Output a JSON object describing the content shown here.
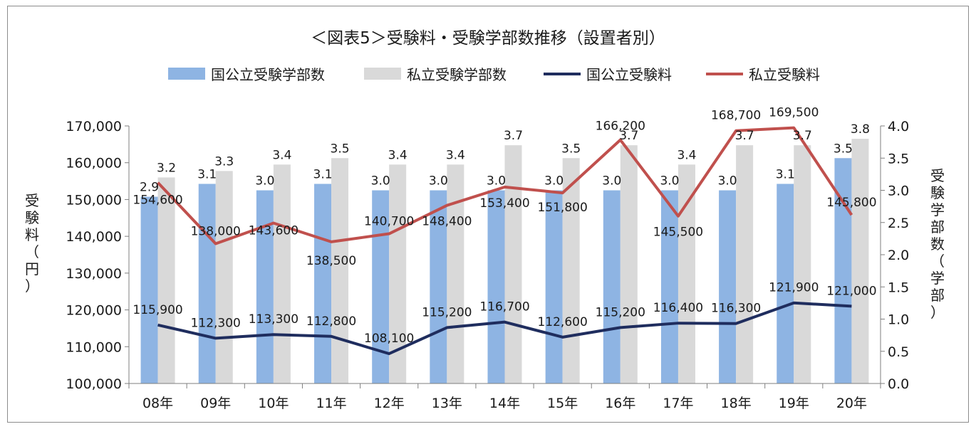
{
  "chart_data": {
    "type": "bar",
    "title": "＜図表5＞受験料・受験学部数推移（設置者別）",
    "categories": [
      "08年",
      "09年",
      "10年",
      "11年",
      "12年",
      "13年",
      "14年",
      "15年",
      "16年",
      "17年",
      "18年",
      "19年",
      "20年"
    ],
    "y_left": {
      "label": "受験料（円）",
      "range": [
        100000,
        170000
      ],
      "ticks": [
        "100,000",
        "110,000",
        "120,000",
        "130,000",
        "140,000",
        "150,000",
        "160,000",
        "170,000"
      ]
    },
    "y_right": {
      "label": "受験学部数（学部）",
      "range": [
        0,
        4
      ],
      "ticks": [
        "0.0",
        "0.5",
        "1.0",
        "1.5",
        "2.0",
        "2.5",
        "3.0",
        "3.5",
        "4.0"
      ]
    },
    "legend_position": "top",
    "grid": false,
    "series": [
      {
        "name": "国公立受験学部数",
        "kind": "bar",
        "axis": "right",
        "color": "#8eb4e3",
        "values": [
          2.9,
          3.1,
          3.0,
          3.1,
          3.0,
          3.0,
          3.0,
          3.0,
          3.0,
          3.0,
          3.0,
          3.1,
          3.5
        ],
        "labels": [
          "2.9",
          "3.1",
          "3.0",
          "3.1",
          "3.0",
          "3.0",
          "3.0",
          "3.0",
          "3.0",
          "3.0",
          "3.0",
          "3.1",
          "3.5"
        ]
      },
      {
        "name": "私立受験学部数",
        "kind": "bar",
        "axis": "right",
        "color": "#d9d9d9",
        "values": [
          3.2,
          3.3,
          3.4,
          3.5,
          3.4,
          3.4,
          3.7,
          3.5,
          3.7,
          3.4,
          3.7,
          3.7,
          3.8
        ],
        "labels": [
          "3.2",
          "3.3",
          "3.4",
          "3.5",
          "3.4",
          "3.4",
          "3.7",
          "3.5",
          "3.7",
          "3.4",
          "3.7",
          "3.7",
          "3.8"
        ]
      },
      {
        "name": "国公立受験料",
        "kind": "line",
        "axis": "left",
        "color": "#1f2d5e",
        "values": [
          115900,
          112300,
          113300,
          112800,
          108100,
          115200,
          116700,
          112600,
          115200,
          116400,
          116300,
          121900,
          121000
        ],
        "labels": [
          "115,900",
          "112,300",
          "113,300",
          "112,800",
          "108,100",
          "115,200",
          "116,700",
          "112,600",
          "115,200",
          "116,400",
          "116,300",
          "121,900",
          "121,000"
        ]
      },
      {
        "name": "私立受験料",
        "kind": "line",
        "axis": "left",
        "color": "#c0504d",
        "values": [
          154600,
          138000,
          143600,
          138500,
          140700,
          148400,
          153400,
          151800,
          166200,
          145500,
          168700,
          169500,
          145800
        ],
        "labels": [
          "154,600",
          "138,000",
          "143,600",
          "138,500",
          "140,700",
          "148,400",
          "153,400",
          "151,800",
          "166,200",
          "145,500",
          "168,700",
          "169,500",
          "145,800"
        ]
      }
    ]
  }
}
